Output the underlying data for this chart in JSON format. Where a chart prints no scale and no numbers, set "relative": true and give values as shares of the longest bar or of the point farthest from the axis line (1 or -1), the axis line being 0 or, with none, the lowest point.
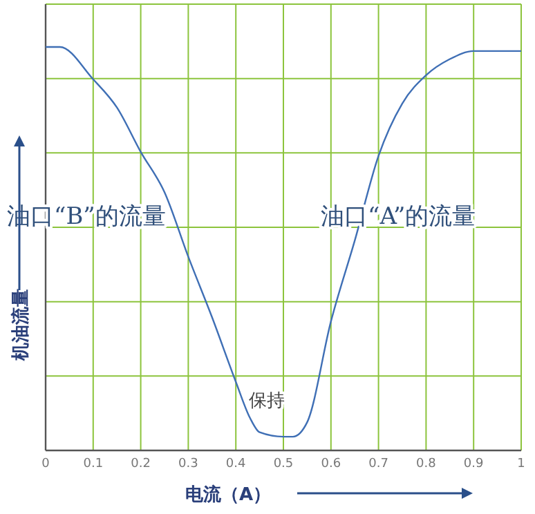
{
  "chart_data": {
    "type": "line",
    "relative": true,
    "xlabel": "电流（A）",
    "ylabel": "机油流量",
    "x": [
      0,
      0.03,
      0.1,
      0.15,
      0.2,
      0.25,
      0.3,
      0.35,
      0.4,
      0.43,
      0.45,
      0.5,
      0.52,
      0.55,
      0.6,
      0.65,
      0.7,
      0.75,
      0.8,
      0.85,
      0.9,
      1
    ],
    "xlim": [
      0,
      1
    ],
    "xticks": [
      0,
      0.1,
      0.2,
      0.3,
      0.4,
      0.5,
      0.6,
      0.7,
      0.8,
      0.9,
      1
    ],
    "series": [
      {
        "color": "#3f6fb5",
        "values": [
          1,
          1,
          0.92,
          0.85,
          0.74,
          0.64,
          0.48,
          0.33,
          0.17,
          0.08,
          0.045,
          0.034,
          0.034,
          0.07,
          0.32,
          0.52,
          0.73,
          0.86,
          0.93,
          0.97,
          0.99,
          0.99
        ]
      }
    ],
    "grid": true,
    "annotations": [
      "油口“B”的流量",
      "油口“A”的流量",
      "保持"
    ]
  }
}
